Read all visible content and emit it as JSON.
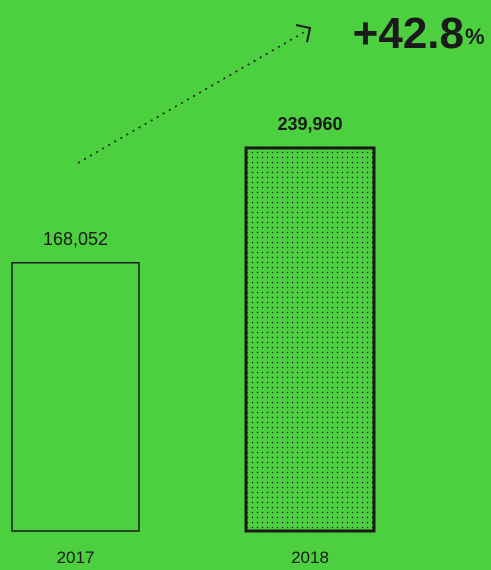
{
  "colors": {
    "background": "#4cd040",
    "ink": "#1a1a1a"
  },
  "chart_data": {
    "type": "bar",
    "categories": [
      "2017",
      "2018"
    ],
    "values": [
      168052,
      239960
    ],
    "value_labels": [
      "168,052",
      "239,960"
    ],
    "ylim": [
      0,
      265000
    ],
    "grid": false,
    "growth": {
      "value": "+42.8",
      "unit": "%"
    }
  }
}
